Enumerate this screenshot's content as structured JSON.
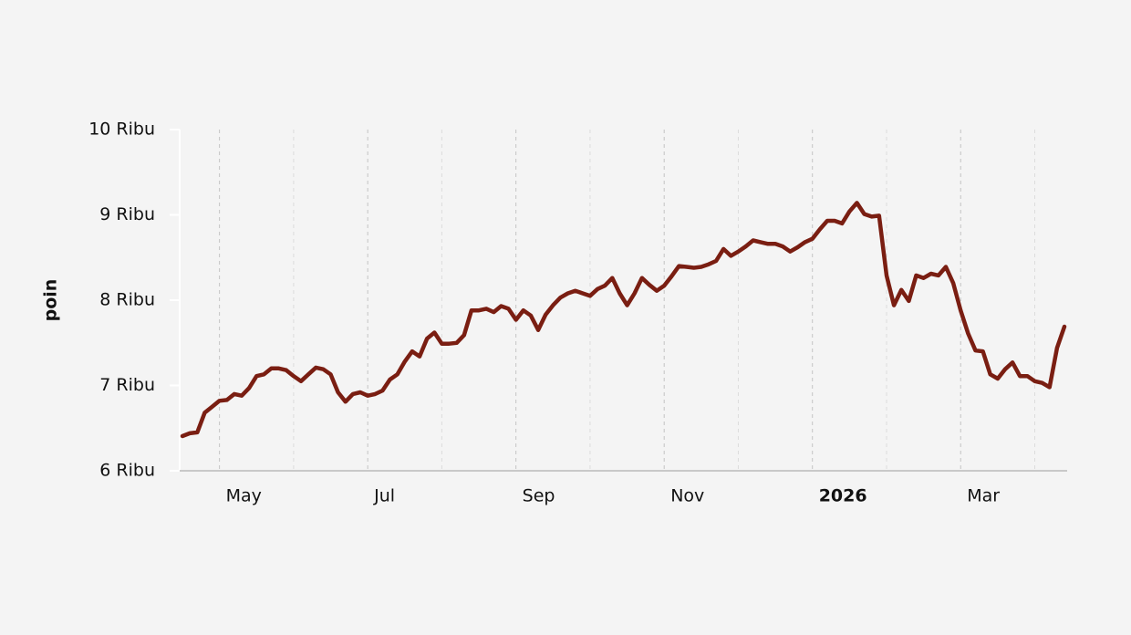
{
  "chart_data": {
    "type": "line",
    "y_label": "poin",
    "categories": [
      null,
      null,
      null,
      null,
      null,
      "May",
      null,
      null,
      null,
      null,
      null,
      null,
      null,
      null,
      null,
      null,
      null,
      null,
      null,
      null,
      null,
      null,
      null,
      null,
      null,
      "Jul",
      null,
      null,
      null,
      null,
      null,
      null,
      null,
      null,
      null,
      null,
      null,
      null,
      null,
      null,
      null,
      null,
      null,
      null,
      null,
      "Sep",
      null,
      null,
      null,
      null,
      null,
      null,
      null,
      null,
      null,
      null,
      null,
      null,
      null,
      null,
      null,
      null,
      null,
      null,
      null,
      "Nov",
      null,
      null,
      null,
      null,
      null,
      null,
      null,
      null,
      null,
      null,
      null,
      null,
      null,
      null,
      null,
      null,
      null,
      null,
      null,
      "2026",
      null,
      null,
      null,
      null,
      null,
      null,
      null,
      null,
      null,
      null,
      null,
      null,
      null,
      null,
      null,
      null,
      null,
      null,
      null,
      "Mar",
      null,
      null,
      null,
      null,
      null,
      null,
      null,
      null,
      null,
      null,
      null,
      null,
      null,
      null
    ],
    "values": [
      6406,
      6440,
      6450,
      6680,
      6750,
      6820,
      6830,
      6900,
      6880,
      6970,
      7110,
      7130,
      7200,
      7200,
      7180,
      7110,
      7050,
      7130,
      7210,
      7190,
      7130,
      6920,
      6810,
      6900,
      6920,
      6880,
      6900,
      6940,
      7070,
      7130,
      7280,
      7400,
      7340,
      7550,
      7620,
      7490,
      7490,
      7500,
      7590,
      7880,
      7880,
      7900,
      7860,
      7930,
      7900,
      7770,
      7880,
      7820,
      7650,
      7830,
      7940,
      8030,
      8080,
      8110,
      8080,
      8050,
      8130,
      8170,
      8260,
      8080,
      7940,
      8080,
      8260,
      8180,
      8110,
      8170,
      8280,
      8400,
      8390,
      8380,
      8390,
      8420,
      8460,
      8600,
      8520,
      8570,
      8630,
      8700,
      8680,
      8660,
      8660,
      8630,
      8570,
      8620,
      8680,
      8720,
      8830,
      8930,
      8930,
      8900,
      9040,
      9140,
      9010,
      8980,
      8990,
      8290,
      7940,
      8120,
      7990,
      8290,
      8260,
      8310,
      8290,
      8390,
      8200,
      7880,
      7610,
      7410,
      7400,
      7130,
      7080,
      7190,
      7270,
      7110,
      7110,
      7050,
      7030,
      6980,
      7440,
      7690
    ],
    "color": "#7a1e12",
    "ylim": [
      6000,
      10000
    ],
    "yticks": [
      {
        "value": 6000,
        "label": "6 Ribu"
      },
      {
        "value": 7000,
        "label": "7 Ribu"
      },
      {
        "value": 8000,
        "label": "8 Ribu"
      },
      {
        "value": 9000,
        "label": "9 Ribu"
      },
      {
        "value": 10000,
        "label": "10 Ribu"
      }
    ],
    "grid": true
  }
}
